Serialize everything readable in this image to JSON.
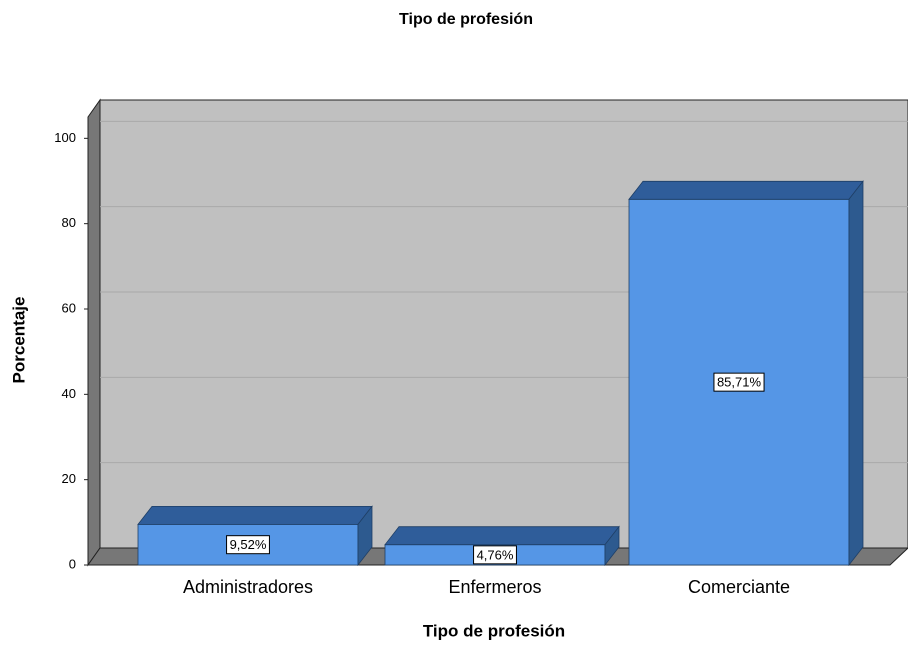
{
  "chart_data": {
    "type": "bar3d",
    "title": "Tipo de profesión",
    "x_label": "Tipo de profesión",
    "y_label": "Porcentaje",
    "categories": [
      "Administradores",
      "Enfermeros",
      "Comerciante"
    ],
    "values": [
      9.52,
      4.76,
      85.71
    ],
    "value_labels": [
      "9,52%",
      "4,76%",
      "85,71%"
    ],
    "color": "#5596e6",
    "ylim": [
      0,
      105
    ],
    "yticks": [
      0,
      20,
      40,
      60,
      80,
      100
    ],
    "grid": true
  }
}
